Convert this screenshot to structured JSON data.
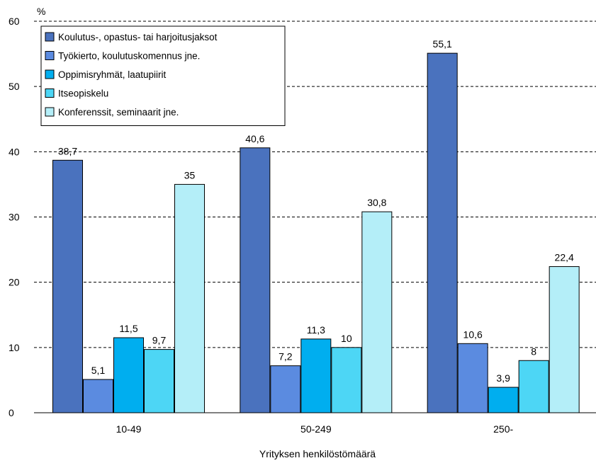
{
  "chart_data": {
    "type": "bar",
    "ylabel": "%",
    "xlabel": "Yrityksen henkilöstömäärä",
    "ylim": [
      0,
      60
    ],
    "yticks": [
      "0",
      "10",
      "20",
      "30",
      "40",
      "50",
      "60"
    ],
    "categories": [
      "10-49",
      "50-249",
      "250-"
    ],
    "grid": "horizontal-dashed",
    "legend_position": "top-left",
    "series": [
      {
        "name": "Koulutus-, opastus- tai harjoitusjaksot",
        "color": "#4A72BE",
        "values": [
          38.7,
          40.6,
          55.1
        ],
        "labels": [
          "38,7",
          "40,6",
          "55,1"
        ]
      },
      {
        "name": "Työkierto, koulutuskomennus jne.",
        "color": "#5B8BE0",
        "values": [
          5.1,
          7.2,
          10.6
        ],
        "labels": [
          "5,1",
          "7,2",
          "10,6"
        ]
      },
      {
        "name": "Oppimisryhmät, laatupiirit",
        "color": "#00AEEF",
        "values": [
          11.5,
          11.3,
          3.9
        ],
        "labels": [
          "11,5",
          "11,3",
          "3,9"
        ]
      },
      {
        "name": "Itseopiskelu",
        "color": "#4DD6F5",
        "values": [
          9.7,
          10,
          8
        ],
        "labels": [
          "9,7",
          "10",
          "8"
        ]
      },
      {
        "name": "Konferenssit, seminaarit jne.",
        "color": "#B4EEF8",
        "values": [
          35,
          30.8,
          22.4
        ],
        "labels": [
          "35",
          "30,8",
          "22,4"
        ]
      }
    ]
  }
}
